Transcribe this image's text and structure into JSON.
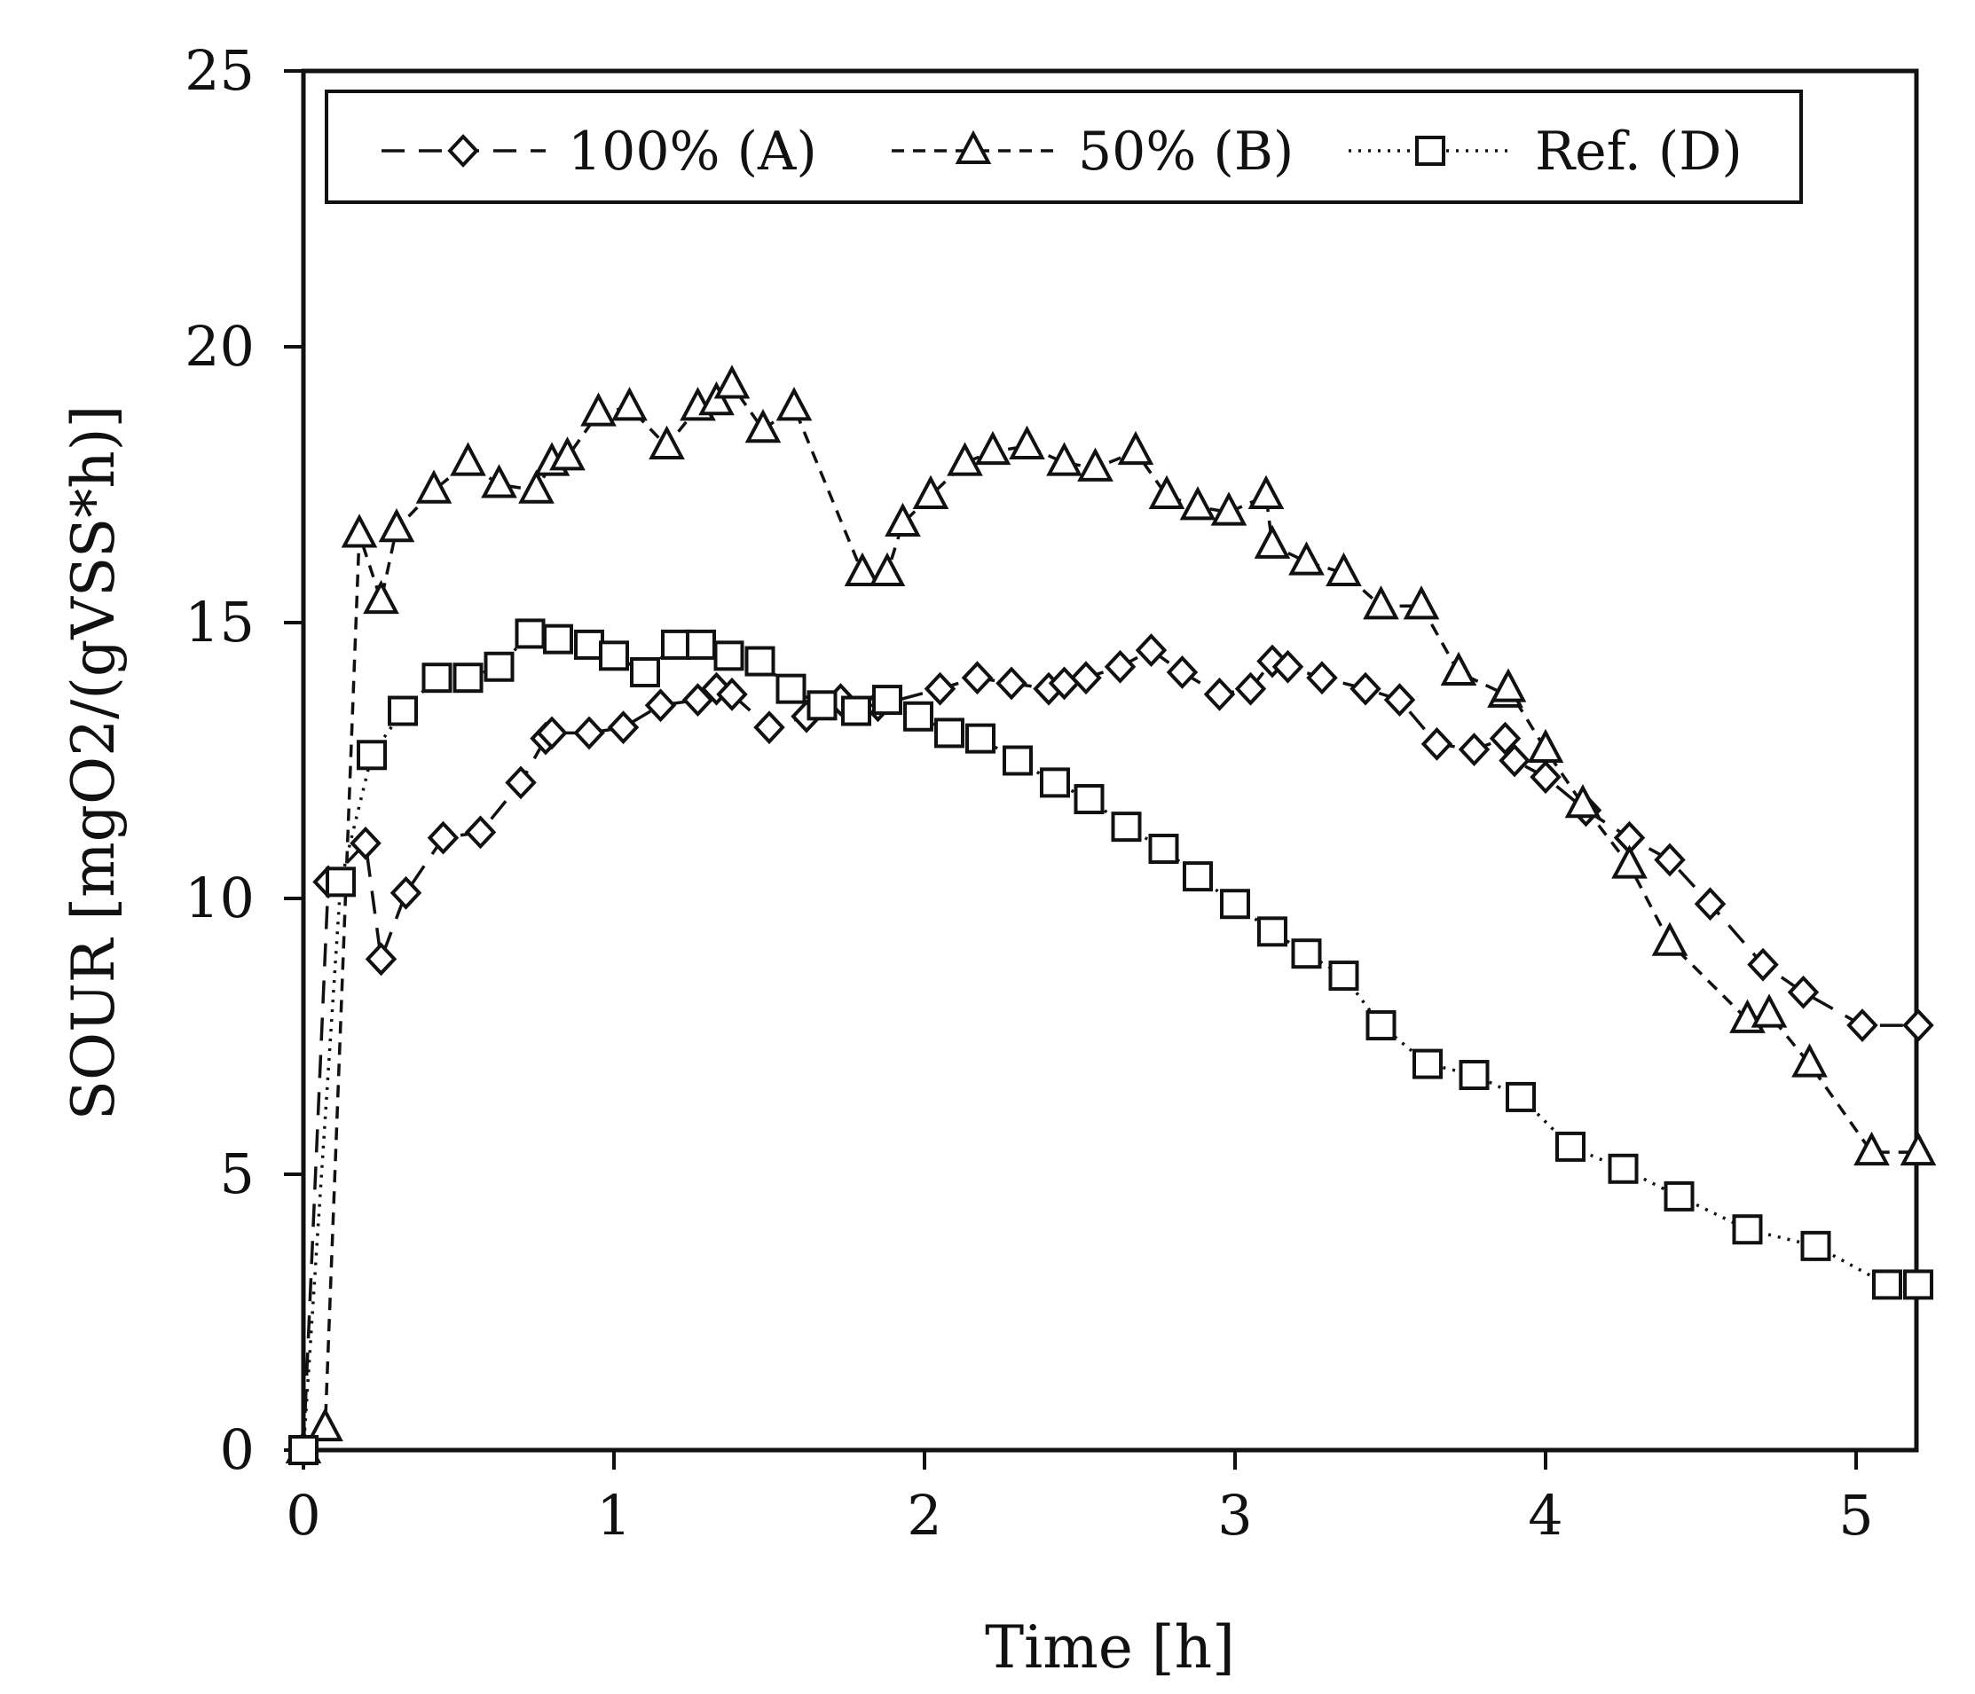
{
  "chart_data": {
    "type": "line",
    "xlabel": "Time [h]",
    "ylabel": "SOUR [mgO2/(gVSS*h)]",
    "xlim": [
      0,
      5.25
    ],
    "ylim": [
      0,
      25
    ],
    "xticks": [
      "0",
      "1",
      "2",
      "3",
      "4",
      "5"
    ],
    "yticks": [
      "0",
      "5",
      "10",
      "15",
      "20",
      "25"
    ],
    "grid": false,
    "legend_position": "top",
    "series": [
      {
        "name": "100% (A)",
        "marker": "diamond",
        "line_style": "long-dash",
        "x": [
          0,
          0.08,
          0.2,
          0.25,
          0.33,
          0.45,
          0.57,
          0.7,
          0.78,
          0.8,
          0.92,
          1.03,
          1.15,
          1.27,
          1.33,
          1.38,
          1.5,
          1.62,
          1.73,
          1.85,
          2.05,
          2.17,
          2.28,
          2.4,
          2.45,
          2.52,
          2.63,
          2.73,
          2.83,
          2.95,
          3.05,
          3.12,
          3.17,
          3.28,
          3.42,
          3.53,
          3.65,
          3.77,
          3.87,
          3.9,
          4.0,
          4.13,
          4.27,
          4.4,
          4.53,
          4.7,
          4.83,
          5.02,
          5.2
        ],
        "y": [
          0,
          10.3,
          11.0,
          8.9,
          10.1,
          11.1,
          11.2,
          12.1,
          12.9,
          13.0,
          13.0,
          13.1,
          13.5,
          13.6,
          13.8,
          13.7,
          13.1,
          13.3,
          13.6,
          13.5,
          13.8,
          14.0,
          13.9,
          13.8,
          13.9,
          14.0,
          14.2,
          14.5,
          14.1,
          13.7,
          13.8,
          14.3,
          14.2,
          14.0,
          13.8,
          13.6,
          12.8,
          12.7,
          12.9,
          12.5,
          12.2,
          11.6,
          11.1,
          10.7,
          9.9,
          8.8,
          8.3,
          7.7,
          7.7
        ]
      },
      {
        "name": "50% (B)",
        "marker": "triangle",
        "line_style": "short-dash",
        "x": [
          0,
          0.07,
          0.18,
          0.25,
          0.3,
          0.42,
          0.53,
          0.63,
          0.75,
          0.8,
          0.85,
          0.95,
          1.05,
          1.17,
          1.27,
          1.33,
          1.38,
          1.48,
          1.58,
          1.8,
          1.88,
          1.93,
          2.02,
          2.13,
          2.22,
          2.33,
          2.45,
          2.55,
          2.68,
          2.78,
          2.88,
          2.98,
          3.1,
          3.12,
          3.23,
          3.35,
          3.47,
          3.6,
          3.72,
          3.87,
          3.88,
          4.0,
          4.12,
          4.27,
          4.4,
          4.65,
          4.72,
          4.85,
          5.05,
          5.2
        ],
        "y": [
          0,
          0.4,
          16.6,
          15.4,
          16.7,
          17.4,
          17.9,
          17.5,
          17.4,
          17.9,
          18.0,
          18.8,
          18.9,
          18.2,
          18.9,
          19.0,
          19.3,
          18.5,
          18.9,
          15.9,
          15.9,
          16.8,
          17.3,
          17.9,
          18.1,
          18.2,
          17.9,
          17.8,
          18.1,
          17.3,
          17.1,
          17.0,
          17.3,
          16.4,
          16.1,
          15.9,
          15.3,
          15.3,
          14.1,
          13.7,
          13.8,
          12.7,
          11.7,
          10.6,
          9.2,
          7.8,
          7.9,
          7.0,
          5.4,
          5.4
        ]
      },
      {
        "name": "Ref. (D)",
        "marker": "square",
        "line_style": "dotted",
        "x": [
          0,
          0.12,
          0.22,
          0.32,
          0.43,
          0.53,
          0.63,
          0.73,
          0.82,
          0.92,
          1.0,
          1.1,
          1.2,
          1.28,
          1.37,
          1.47,
          1.57,
          1.67,
          1.78,
          1.88,
          1.98,
          2.08,
          2.18,
          2.3,
          2.42,
          2.53,
          2.65,
          2.77,
          2.88,
          3.0,
          3.12,
          3.23,
          3.35,
          3.47,
          3.62,
          3.77,
          3.92,
          4.08,
          4.25,
          4.43,
          4.65,
          4.87,
          5.1,
          5.2
        ],
        "y": [
          0,
          10.3,
          12.6,
          13.4,
          14.0,
          14.0,
          14.2,
          14.8,
          14.7,
          14.6,
          14.4,
          14.1,
          14.6,
          14.6,
          14.4,
          14.3,
          13.8,
          13.5,
          13.4,
          13.6,
          13.3,
          13.0,
          12.9,
          12.5,
          12.1,
          11.8,
          11.3,
          10.9,
          10.4,
          9.9,
          9.4,
          9.0,
          8.6,
          7.7,
          7.0,
          6.8,
          6.4,
          5.5,
          5.1,
          4.6,
          4.0,
          3.7,
          3.0,
          3.0
        ]
      }
    ]
  }
}
